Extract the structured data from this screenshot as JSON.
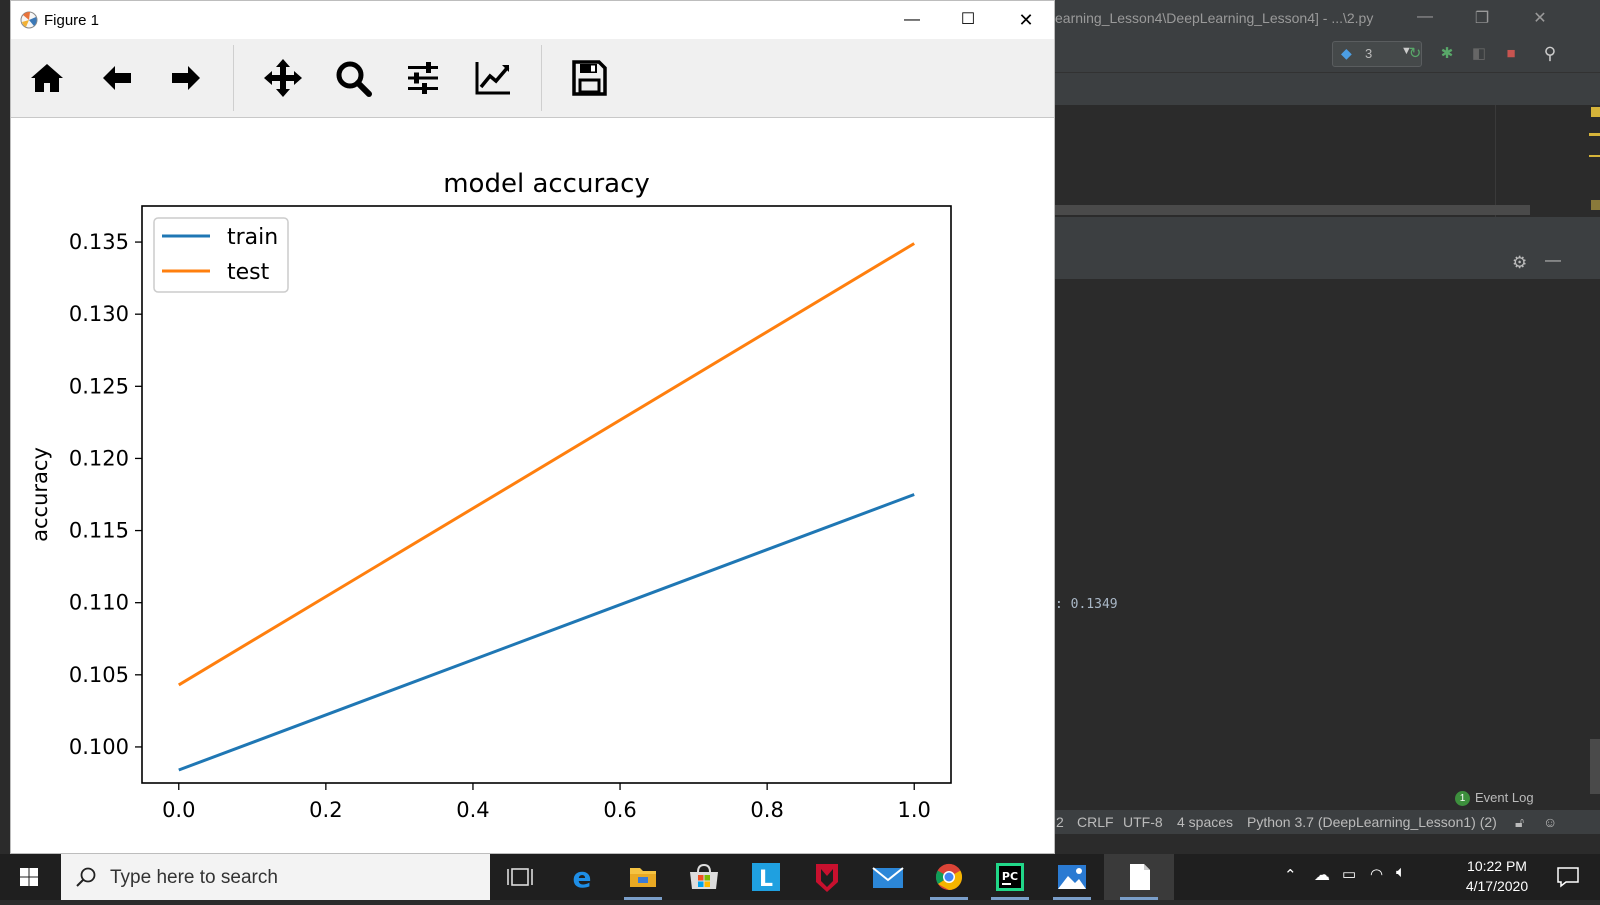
{
  "ide": {
    "title": "earning_Lesson4\\DeepLearning_Lesson4] - ...\\2.py",
    "run_config_value": "3",
    "console_line": ": 0.1349",
    "event_log": {
      "badge": "1",
      "label": "Event Log"
    },
    "status": {
      "line_sep_prefix": "2",
      "line_sep": "CRLF",
      "encoding": "UTF-8",
      "indent": "4 spaces",
      "interpreter": "Python 3.7 (DeepLearning_Lesson1) (2)"
    }
  },
  "figure": {
    "title": "Figure 1",
    "toolbar_tools": [
      "home-icon",
      "back-arrow-icon",
      "forward-arrow-icon",
      "pan-icon",
      "zoom-icon",
      "subplots-config-icon",
      "edit-axis-icon",
      "save-icon"
    ]
  },
  "chart_data": {
    "type": "line",
    "title": "model accuracy",
    "xlabel": "",
    "ylabel": "accuracy",
    "xlim": [
      -0.05,
      1.05
    ],
    "ylim": [
      0.0975,
      0.1375
    ],
    "xticks": [
      0.0,
      0.2,
      0.4,
      0.6,
      0.8,
      1.0
    ],
    "xtick_labels": [
      "0.0",
      "0.2",
      "0.4",
      "0.6",
      "0.8",
      "1.0"
    ],
    "yticks": [
      0.1,
      0.105,
      0.11,
      0.115,
      0.12,
      0.125,
      0.13,
      0.135
    ],
    "ytick_labels": [
      "0.100",
      "0.105",
      "0.110",
      "0.115",
      "0.120",
      "0.125",
      "0.130",
      "0.135"
    ],
    "legend": "top-left",
    "grid": false,
    "series": [
      {
        "name": "train",
        "color": "#1f77b4",
        "x": [
          0.0,
          1.0
        ],
        "y": [
          0.0984,
          0.1175
        ]
      },
      {
        "name": "test",
        "color": "#ff7f0e",
        "x": [
          0.0,
          1.0
        ],
        "y": [
          0.1043,
          0.1349
        ]
      }
    ]
  },
  "taskbar": {
    "search_placeholder": "Type here to search",
    "apps": [
      "task-view-icon",
      "edge-icon",
      "file-explorer-icon",
      "store-icon",
      "l-app-icon",
      "mcafee-icon",
      "mail-icon",
      "chrome-icon",
      "pycharm-icon",
      "photos-icon",
      "notepad-icon"
    ],
    "clock_time": "10:22 PM",
    "clock_date": "4/17/2020"
  }
}
